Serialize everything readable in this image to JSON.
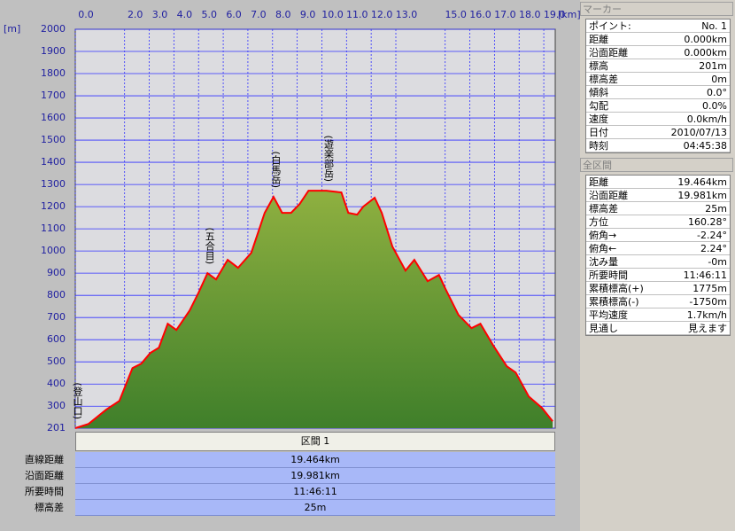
{
  "chart_data": {
    "type": "line",
    "y_unit": "[m]",
    "x_unit": "[km]",
    "x": [
      0,
      0.54,
      1.25,
      1.79,
      2.32,
      2.68,
      3.04,
      3.39,
      3.75,
      4.1,
      4.64,
      5.0,
      5.36,
      5.71,
      6.18,
      6.6,
      7.14,
      7.68,
      8.04,
      8.39,
      8.75,
      9.1,
      9.46,
      10.18,
      10.79,
      11.07,
      11.43,
      11.68,
      12.14,
      12.43,
      12.86,
      13.39,
      13.75,
      14.29,
      14.75,
      15.0,
      15.54,
      16.07,
      16.43,
      16.96,
      17.5,
      17.86,
      18.39,
      18.93,
      19.36
    ],
    "values": [
      201,
      220,
      284,
      324,
      472,
      492,
      540,
      564,
      672,
      644,
      732,
      812,
      900,
      872,
      960,
      924,
      992,
      1172,
      1244,
      1172,
      1172,
      1212,
      1272,
      1272,
      1264,
      1172,
      1164,
      1200,
      1240,
      1172,
      1020,
      912,
      960,
      864,
      892,
      832,
      712,
      652,
      672,
      572,
      480,
      452,
      344,
      292,
      232
    ],
    "color": "#ff0000",
    "fill_colors": [
      "#8fb040",
      "#3f7f2a"
    ],
    "xlim": [
      0,
      19.464
    ],
    "ylim": [
      201,
      2000
    ],
    "xticks": [
      {
        "value": 0,
        "label": "0.0"
      },
      {
        "value": 2,
        "label": "2.0"
      },
      {
        "value": 3,
        "label": "3.0"
      },
      {
        "value": 4,
        "label": "4.0"
      },
      {
        "value": 5,
        "label": "5.0"
      },
      {
        "value": 6,
        "label": "6.0"
      },
      {
        "value": 7,
        "label": "7.0"
      },
      {
        "value": 8,
        "label": "8.0"
      },
      {
        "value": 9,
        "label": "9.0"
      },
      {
        "value": 10,
        "label": "10.0"
      },
      {
        "value": 11,
        "label": "11.0"
      },
      {
        "value": 12,
        "label": "12.0"
      },
      {
        "value": 13,
        "label": "13.0"
      },
      {
        "value": 15,
        "label": "15.0"
      },
      {
        "value": 16,
        "label": "16.0"
      },
      {
        "value": 17,
        "label": "17.0"
      },
      {
        "value": 18,
        "label": "18.0"
      },
      {
        "value": 19,
        "label": "19.0"
      }
    ],
    "yticks": [
      201,
      300,
      400,
      500,
      600,
      700,
      800,
      900,
      1000,
      1100,
      1200,
      1300,
      1400,
      1500,
      1600,
      1700,
      1800,
      1900,
      2000
    ],
    "grid": true,
    "annotations": [
      {
        "text": "(登山口)",
        "x": 0
      },
      {
        "text": "(五合目)",
        "x": 5.36
      },
      {
        "text": "(白馬岳)",
        "x": 8.04
      },
      {
        "text": "(遊楽部岳)",
        "x": 10.18
      }
    ]
  },
  "segment_table": {
    "header": "区間 1",
    "rows": [
      [
        "直線距離",
        "19.464km"
      ],
      [
        "沿面距離",
        "19.981km"
      ],
      [
        "所要時間",
        "11:46:11"
      ],
      [
        "標高差",
        "25m"
      ]
    ]
  },
  "marker_panel": {
    "title": "マーカー",
    "rows": [
      [
        "ポイント:",
        "No. 1"
      ],
      [
        "距離",
        "0.000km"
      ],
      [
        "沿面距離",
        "0.000km"
      ],
      [
        "標高",
        "201m"
      ],
      [
        "標高差",
        "0m"
      ],
      [
        "傾斜",
        "0.0°"
      ],
      [
        "勾配",
        "0.0%"
      ],
      [
        "速度",
        "0.0km/h"
      ],
      [
        "日付",
        "2010/07/13"
      ],
      [
        "時刻",
        "04:45:38"
      ]
    ]
  },
  "total_panel": {
    "title": "全区間",
    "rows": [
      [
        "距離",
        "19.464km"
      ],
      [
        "沿面距離",
        "19.981km"
      ],
      [
        "標高差",
        "25m"
      ],
      [
        "方位",
        "160.28°"
      ],
      [
        "俯角→",
        "-2.24°"
      ],
      [
        "俯角←",
        "2.24°"
      ],
      [
        "沈み量",
        "-0m"
      ],
      [
        "所要時間",
        "11:46:11"
      ],
      [
        "累積標高(+)",
        "1775m"
      ],
      [
        "累積標高(-)",
        "-1750m"
      ],
      [
        "平均速度",
        "1.7km/h"
      ],
      [
        "見通し",
        "見えます"
      ]
    ]
  }
}
